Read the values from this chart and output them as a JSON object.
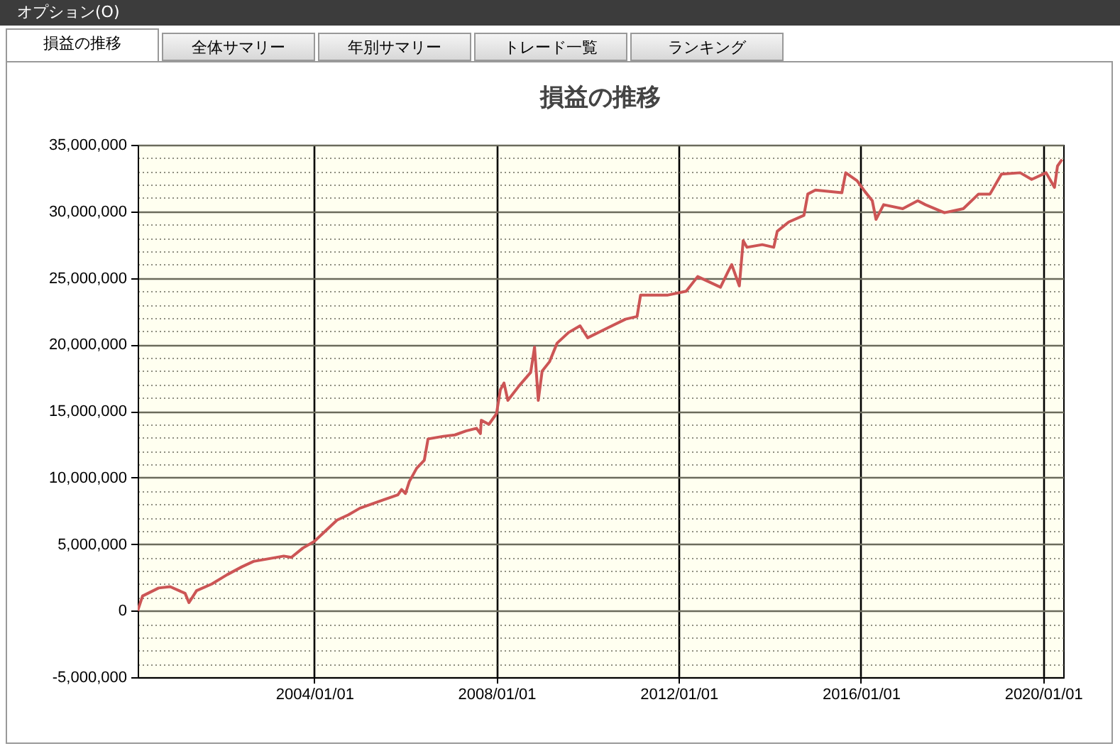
{
  "chart_data": {
    "type": "line",
    "title": "損益の推移",
    "annotations": [
      "オプション(O)",
      "損益の推移",
      "全体サマリー",
      "年別サマリー",
      "トレード一覧",
      "ランキング"
    ],
    "x": [
      "2000-02-15",
      "2000-03-25",
      "2000-08",
      "2000-11",
      "2001-03",
      "2001-04",
      "2001-06",
      "2001-10",
      "2002-02",
      "2002-06",
      "2002-09",
      "2003-01",
      "2003-05",
      "2003-07",
      "2003-10",
      "2004-01",
      "2004-04",
      "2004-07",
      "2004-10",
      "2005-01",
      "2005-07",
      "2005-11",
      "2005-12",
      "2006-01",
      "2006-02",
      "2006-04",
      "2006-06",
      "2006-07",
      "2006-11",
      "2007-02",
      "2007-05",
      "2007-07-25",
      "2007-08-25",
      "2007-09",
      "2007-11",
      "2008-01",
      "2008-02",
      "2008-03",
      "2008-04",
      "2008-07",
      "2008-10",
      "2008-11",
      "2008-12",
      "2009-01",
      "2009-03",
      "2009-05",
      "2009-08",
      "2009-11",
      "2010-01",
      "2010-06",
      "2010-11",
      "2011-02",
      "2011-03",
      "2011-10",
      "2012-03",
      "2012-06",
      "2012-12",
      "2013-02",
      "2013-03",
      "2013-05",
      "2013-06",
      "2013-07",
      "2013-11",
      "2014-02",
      "2014-03",
      "2014-06",
      "2014-10",
      "2014-11",
      "2015-01",
      "2015-08",
      "2015-09",
      "2015-12",
      "2016-02",
      "2016-04",
      "2016-05",
      "2016-07",
      "2016-12",
      "2017-04",
      "2017-06",
      "2017-11",
      "2018-04",
      "2018-08",
      "2018-11",
      "2019-02",
      "2019-07",
      "2019-10",
      "2020-01-25",
      "2020-04",
      "2020-04-25",
      "2020-06"
    ],
    "series": [
      {
        "color": "#cc5555",
        "values": [
          0,
          1100000,
          1700000,
          1800000,
          1300000,
          600000,
          1500000,
          2000000,
          2700000,
          3300000,
          3700000,
          3900000,
          4100000,
          4000000,
          4700000,
          5200000,
          6000000,
          6800000,
          7200000,
          7700000,
          8300000,
          8700000,
          9100000,
          8800000,
          9700000,
          10700000,
          11300000,
          12900000,
          13100000,
          13200000,
          13500000,
          13700000,
          13300000,
          14300000,
          14000000,
          14800000,
          16600000,
          17100000,
          15800000,
          16900000,
          17900000,
          19800000,
          15800000,
          18000000,
          18700000,
          20100000,
          20900000,
          21400000,
          20500000,
          21200000,
          21900000,
          22100000,
          23700000,
          23700000,
          24000000,
          25100000,
          24300000,
          25500000,
          26000000,
          24400000,
          27800000,
          27300000,
          27500000,
          27300000,
          28500000,
          29200000,
          29700000,
          31300000,
          31600000,
          31400000,
          32900000,
          32300000,
          31500000,
          30800000,
          29400000,
          30500000,
          30200000,
          30800000,
          30500000,
          29900000,
          30200000,
          31300000,
          31300000,
          32800000,
          32900000,
          32400000,
          32900000,
          31800000,
          33400000,
          33900000
        ]
      }
    ],
    "xlim": [
      "2000-02-15",
      "2020-06-10"
    ],
    "xticks": [
      {
        "value": "2004-01-01",
        "label": "2004/01/01"
      },
      {
        "value": "2008-01-01",
        "label": "2008/01/01"
      },
      {
        "value": "2012-01-01",
        "label": "2012/01/01"
      },
      {
        "value": "2016-01-01",
        "label": "2016/01/01"
      },
      {
        "value": "2020-01-01",
        "label": "2020/01/01"
      }
    ],
    "ylim": [
      -5000000,
      35000000
    ],
    "yticks": [
      {
        "value": -5000000,
        "label": "-5,000,000"
      },
      {
        "value": -4000000,
        "label": null
      },
      {
        "value": -3000000,
        "label": null
      },
      {
        "value": -2000000,
        "label": null
      },
      {
        "value": -1000000,
        "label": null
      },
      {
        "value": 0,
        "label": "0"
      },
      {
        "value": 1000000,
        "label": null
      },
      {
        "value": 2000000,
        "label": null
      },
      {
        "value": 3000000,
        "label": null
      },
      {
        "value": 4000000,
        "label": null
      },
      {
        "value": 5000000,
        "label": "5,000,000"
      },
      {
        "value": 6000000,
        "label": null
      },
      {
        "value": 7000000,
        "label": null
      },
      {
        "value": 8000000,
        "label": null
      },
      {
        "value": 9000000,
        "label": null
      },
      {
        "value": 10000000,
        "label": "10,000,000"
      },
      {
        "value": 11000000,
        "label": null
      },
      {
        "value": 12000000,
        "label": null
      },
      {
        "value": 13000000,
        "label": null
      },
      {
        "value": 14000000,
        "label": null
      },
      {
        "value": 15000000,
        "label": "15,000,000"
      },
      {
        "value": 16000000,
        "label": null
      },
      {
        "value": 17000000,
        "label": null
      },
      {
        "value": 18000000,
        "label": null
      },
      {
        "value": 19000000,
        "label": null
      },
      {
        "value": 20000000,
        "label": "20,000,000"
      },
      {
        "value": 21000000,
        "label": null
      },
      {
        "value": 22000000,
        "label": null
      },
      {
        "value": 23000000,
        "label": null
      },
      {
        "value": 24000000,
        "label": null
      },
      {
        "value": 25000000,
        "label": "25,000,000"
      },
      {
        "value": 26000000,
        "label": null
      },
      {
        "value": 27000000,
        "label": null
      },
      {
        "value": 28000000,
        "label": null
      },
      {
        "value": 29000000,
        "label": null
      },
      {
        "value": 30000000,
        "label": "30,000,000"
      },
      {
        "value": 31000000,
        "label": null
      },
      {
        "value": 32000000,
        "label": null
      },
      {
        "value": 33000000,
        "label": null
      },
      {
        "value": 34000000,
        "label": null
      },
      {
        "value": 35000000,
        "label": "35,000,000"
      }
    ],
    "grid": true,
    "marker": "none",
    "line_style": "solid",
    "legend": false
  }
}
